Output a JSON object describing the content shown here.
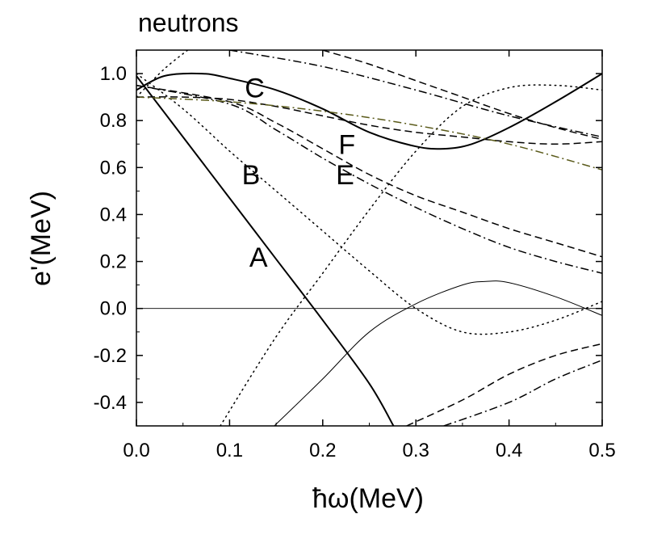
{
  "chart_data": {
    "type": "line",
    "title": "neutrons",
    "xlabel": "ħω(MeV)",
    "ylabel": "e'(MeV)",
    "xlim": [
      0.0,
      0.5
    ],
    "ylim": [
      -0.5,
      1.1
    ],
    "xticks": [
      "0.0",
      "0.1",
      "0.2",
      "0.3",
      "0.4",
      "0.5"
    ],
    "yticks": [
      "-0.4",
      "-0.2",
      "0.0",
      "0.2",
      "0.4",
      "0.6",
      "0.8",
      "1.0"
    ],
    "xtick_values": [
      0.0,
      0.1,
      0.2,
      0.3,
      0.4,
      0.5
    ],
    "ytick_values": [
      -0.4,
      -0.2,
      0.0,
      0.2,
      0.4,
      0.6,
      0.8,
      1.0
    ],
    "grid": false,
    "zero_line": 0.0,
    "series": [
      {
        "name": "A",
        "style": "solid",
        "width": 2,
        "x": [
          0.0,
          0.05,
          0.1,
          0.15,
          0.2,
          0.25,
          0.276
        ],
        "y": [
          0.99,
          0.73,
          0.47,
          0.21,
          -0.05,
          -0.32,
          -0.5
        ]
      },
      {
        "name": "C",
        "style": "solid",
        "width": 2,
        "x": [
          0.0,
          0.03,
          0.07,
          0.1,
          0.15,
          0.2,
          0.25,
          0.3,
          0.33,
          0.36,
          0.4,
          0.45,
          0.5
        ],
        "y": [
          0.93,
          0.99,
          1.0,
          0.98,
          0.93,
          0.85,
          0.75,
          0.69,
          0.68,
          0.7,
          0.77,
          0.88,
          1.0
        ]
      },
      {
        "name": "thin solid",
        "style": "solid",
        "width": 1,
        "x": [
          0.148,
          0.2,
          0.25,
          0.3,
          0.35,
          0.375,
          0.4,
          0.45,
          0.5
        ],
        "y": [
          -0.5,
          -0.3,
          -0.1,
          0.02,
          0.1,
          0.115,
          0.11,
          0.05,
          -0.03
        ]
      },
      {
        "name": "B",
        "style": "dotted",
        "width": 1.5,
        "x": [
          0.0,
          0.05,
          0.1,
          0.15,
          0.2,
          0.25,
          0.3,
          0.35,
          0.4,
          0.45,
          0.5
        ],
        "y": [
          1.0,
          0.85,
          0.67,
          0.5,
          0.33,
          0.16,
          0.0,
          -0.1,
          -0.1,
          -0.05,
          0.03
        ]
      },
      {
        "name": "dotted rising",
        "style": "dotted",
        "width": 1.5,
        "x": [
          0.09,
          0.15,
          0.2,
          0.25,
          0.3,
          0.35,
          0.4,
          0.45,
          0.5
        ],
        "y": [
          -0.5,
          -0.12,
          0.15,
          0.42,
          0.67,
          0.86,
          0.94,
          0.95,
          0.93
        ]
      },
      {
        "name": "dotted steep",
        "style": "dotted",
        "width": 1.5,
        "x": [
          0.0,
          0.03,
          0.055
        ],
        "y": [
          0.9,
          1.02,
          1.1
        ]
      },
      {
        "name": "E",
        "style": "dashed",
        "width": 1.5,
        "x": [
          0.0,
          0.1,
          0.15,
          0.2,
          0.25,
          0.3,
          0.35,
          0.4,
          0.45,
          0.5
        ],
        "y": [
          0.95,
          0.88,
          0.79,
          0.68,
          0.57,
          0.48,
          0.41,
          0.34,
          0.28,
          0.22
        ]
      },
      {
        "name": "F",
        "style": "dashed",
        "width": 1.5,
        "x": [
          0.0,
          0.05,
          0.1,
          0.15,
          0.2,
          0.25,
          0.3,
          0.35,
          0.4,
          0.45,
          0.5
        ],
        "y": [
          0.9,
          0.9,
          0.89,
          0.86,
          0.82,
          0.78,
          0.75,
          0.73,
          0.71,
          0.7,
          0.71
        ]
      },
      {
        "name": "dash-dot E",
        "style": "dashdot",
        "width": 1.5,
        "x": [
          0.0,
          0.1,
          0.15,
          0.2,
          0.25,
          0.3,
          0.35,
          0.4,
          0.45,
          0.5
        ],
        "y": [
          0.95,
          0.87,
          0.76,
          0.64,
          0.53,
          0.43,
          0.34,
          0.26,
          0.2,
          0.15
        ]
      },
      {
        "name": "dash-dot F",
        "style": "dashdot",
        "width": 1.5,
        "color": "#5a5a1a",
        "x": [
          0.0,
          0.1,
          0.2,
          0.3,
          0.4,
          0.5
        ],
        "y": [
          0.9,
          0.88,
          0.84,
          0.78,
          0.7,
          0.59
        ]
      },
      {
        "name": "dashed upper",
        "style": "dashed",
        "width": 1.5,
        "x": [
          0.2,
          0.25,
          0.3,
          0.35,
          0.4,
          0.45,
          0.5
        ],
        "y": [
          1.1,
          1.04,
          0.97,
          0.9,
          0.83,
          0.77,
          0.72
        ]
      },
      {
        "name": "dash-dot upper",
        "style": "dashdot",
        "width": 1.5,
        "x": [
          0.1,
          0.2,
          0.3,
          0.4,
          0.5
        ],
        "y": [
          1.1,
          1.03,
          0.93,
          0.82,
          0.73
        ]
      },
      {
        "name": "dashed lower",
        "style": "dashed",
        "width": 1.5,
        "x": [
          0.29,
          0.35,
          0.4,
          0.45,
          0.5
        ],
        "y": [
          -0.5,
          -0.39,
          -0.28,
          -0.2,
          -0.15
        ]
      },
      {
        "name": "dash-dot lower",
        "style": "dashdot",
        "width": 1.5,
        "x": [
          0.33,
          0.4,
          0.45,
          0.5
        ],
        "y": [
          -0.5,
          -0.4,
          -0.3,
          -0.22
        ]
      }
    ],
    "annotations": [
      {
        "text": "A",
        "x": 0.131,
        "y": 0.22
      },
      {
        "text": "B",
        "x": 0.123,
        "y": 0.57
      },
      {
        "text": "C",
        "x": 0.127,
        "y": 0.94
      },
      {
        "text": "E",
        "x": 0.224,
        "y": 0.57
      },
      {
        "text": "F",
        "x": 0.226,
        "y": 0.7
      }
    ]
  }
}
